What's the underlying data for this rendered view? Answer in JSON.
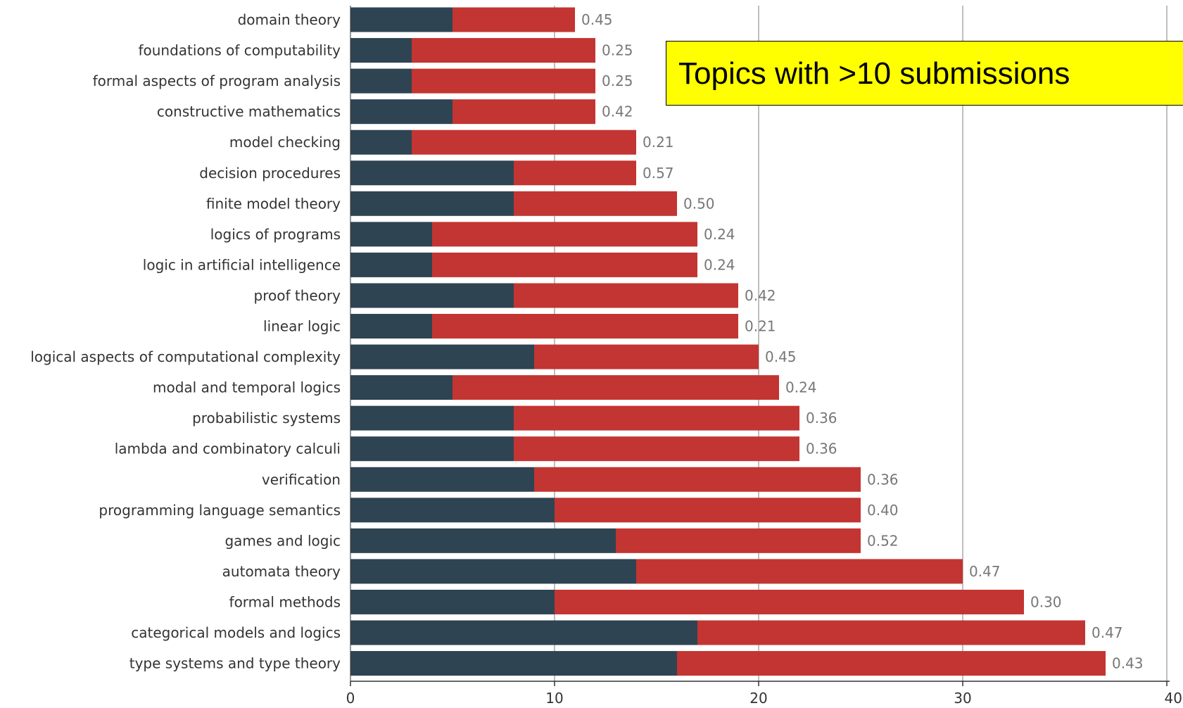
{
  "chart_data": {
    "type": "bar",
    "stacked": true,
    "orientation": "horizontal",
    "title": "Topics with >10 submissions",
    "xlabel": "",
    "ylabel": "",
    "xlim": [
      0,
      40
    ],
    "x_ticks": [
      0,
      10,
      20,
      30,
      40
    ],
    "grid": true,
    "colors": [
      "#2e4453",
      "#c23532"
    ],
    "categories": [
      "domain theory",
      "foundations of computability",
      "formal aspects of program analysis",
      "constructive mathematics",
      "model checking",
      "decision procedures",
      "finite model theory",
      "logics of programs",
      "logic in artificial intelligence",
      "proof theory",
      "linear logic",
      "logical aspects of computational complexity",
      "modal and temporal logics",
      "probabilistic systems",
      "lambda and combinatory calculi",
      "verification",
      "programming language semantics",
      "games and logic",
      "automata theory",
      "formal methods",
      "categorical models and logics",
      "type systems and type theory"
    ],
    "series": [
      {
        "values": [
          5,
          3,
          3,
          5,
          3,
          8,
          8,
          4,
          4,
          8,
          4,
          9,
          5,
          8,
          8,
          9,
          10,
          13,
          14,
          10,
          17,
          16
        ]
      },
      {
        "values": [
          6,
          9,
          9,
          7,
          11,
          6,
          8,
          13,
          13,
          11,
          15,
          11,
          16,
          14,
          14,
          16,
          15,
          12,
          16,
          23,
          19,
          21
        ]
      }
    ],
    "data_labels": [
      "0.45",
      "0.25",
      "0.25",
      "0.42",
      "0.21",
      "0.57",
      "0.50",
      "0.24",
      "0.24",
      "0.42",
      "0.21",
      "0.45",
      "0.24",
      "0.36",
      "0.36",
      "0.36",
      "0.40",
      "0.52",
      "0.47",
      "0.30",
      "0.47",
      "0.43"
    ]
  }
}
